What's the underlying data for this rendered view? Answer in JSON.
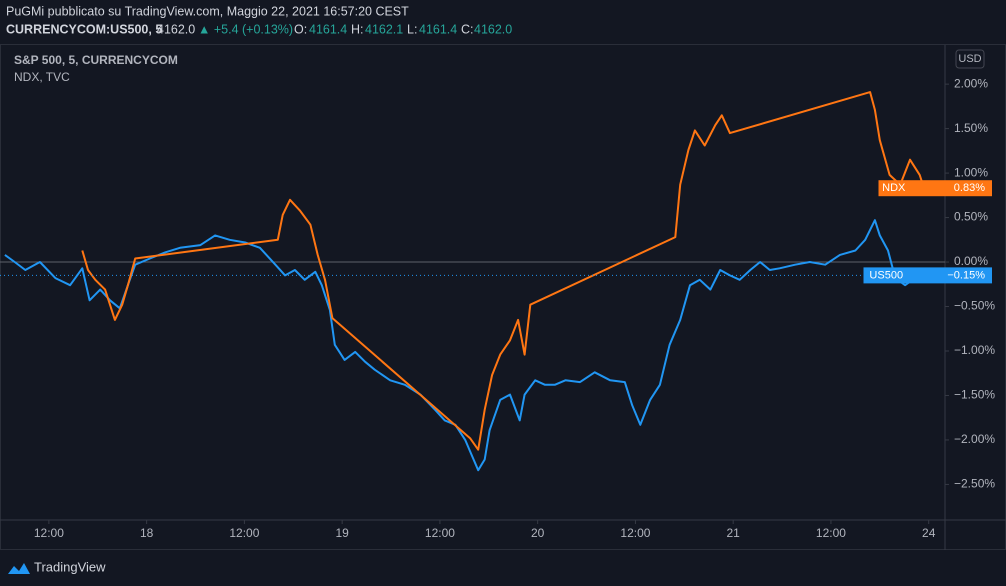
{
  "header": {
    "author_line": "PuGMi pubblicato su TradingView.com, Maggio 22, 2021 16:57:20 CEST",
    "symbol": "CURRENCYCOM:US500, 5",
    "price": "4162.0",
    "change": "▲ +5.4 (+0.13%)",
    "ohlc": [
      {
        "label": "O:",
        "value": "4161.4"
      },
      {
        "label": "H:",
        "value": "4162.1"
      },
      {
        "label": "L:",
        "value": "4161.4"
      },
      {
        "label": "C:",
        "value": "4162.0"
      }
    ]
  },
  "legend": [
    "S&P 500, 5, CURRENCYCOM",
    "NDX, TVC"
  ],
  "currency": "USD",
  "footer": "TradingView",
  "chart_data": {
    "type": "line",
    "xlim": [
      6,
      122
    ],
    "ylim": [
      -2.9,
      2.44
    ],
    "xticks": [
      {
        "value": 12,
        "label": "12:00"
      },
      {
        "value": 24,
        "label": "18"
      },
      {
        "value": 36,
        "label": "12:00"
      },
      {
        "value": 48,
        "label": "19"
      },
      {
        "value": 60,
        "label": "12:00"
      },
      {
        "value": 72,
        "label": "20"
      },
      {
        "value": 84,
        "label": "12:00"
      },
      {
        "value": 96,
        "label": "21"
      },
      {
        "value": 108,
        "label": "12:00"
      },
      {
        "value": 120,
        "label": "24"
      }
    ],
    "yticks": [
      {
        "value": 2,
        "label": "2.00%"
      },
      {
        "value": 1.5,
        "label": "1.50%"
      },
      {
        "value": 1,
        "label": "1.00%"
      },
      {
        "value": 0.5,
        "label": "0.50%"
      },
      {
        "value": 0,
        "label": "0.00%"
      },
      {
        "value": -0.5,
        "label": "−0.50%"
      },
      {
        "value": -1,
        "label": "−1.00%"
      },
      {
        "value": -1.5,
        "label": "−1.50%"
      },
      {
        "value": -2,
        "label": "−2.00%"
      },
      {
        "value": -2.5,
        "label": "−2.50%"
      }
    ],
    "grid": false,
    "series": [
      {
        "name": "US500",
        "color": "#2196f3",
        "last_value": -0.15,
        "last_label": "−0.15%",
        "x": [
          6.6,
          7.8,
          9.1,
          10.9,
          12.8,
          14.6,
          16.1,
          17.0,
          18.3,
          19.5,
          20.7,
          21.7,
          22.6,
          24.4,
          26.3,
          28.1,
          30.6,
          32.4,
          34.2,
          36.1,
          37.9,
          39.8,
          41.0,
          42.2,
          43.4,
          44.7,
          45.5,
          46.5,
          47.1,
          48.3,
          49.6,
          50.8,
          52.0,
          53.9,
          55.7,
          57.6,
          59.4,
          60.6,
          61.9,
          63.1,
          63.9,
          64.7,
          65.5,
          66.1,
          67.4,
          68.6,
          69.8,
          70.4,
          71.7,
          72.9,
          74.1,
          75.4,
          77.2,
          79.0,
          80.9,
          82.7,
          83.6,
          84.6,
          85.8,
          87.0,
          88.2,
          89.5,
          90.7,
          91.9,
          93.2,
          94.4,
          95.6,
          96.8,
          98.1,
          99.3,
          100.5,
          101.7,
          103.6,
          105.4,
          107.3,
          109.1,
          111.0,
          112.2,
          113.4,
          114.0,
          115.0,
          115.9,
          117.1,
          118.3,
          119.5,
          120.8
        ],
        "values": [
          0.08,
          0,
          -0.09,
          0,
          -0.18,
          -0.26,
          -0.07,
          -0.43,
          -0.31,
          -0.43,
          -0.52,
          -0.26,
          -0.03,
          0.04,
          0.11,
          0.16,
          0.19,
          0.3,
          0.25,
          0.22,
          0.16,
          -0.03,
          -0.15,
          -0.09,
          -0.2,
          -0.11,
          -0.26,
          -0.54,
          -0.93,
          -1.1,
          -1.01,
          -1.12,
          -1.21,
          -1.33,
          -1.38,
          -1.49,
          -1.66,
          -1.78,
          -1.83,
          -2.0,
          -2.17,
          -2.34,
          -2.22,
          -1.89,
          -1.55,
          -1.49,
          -1.78,
          -1.49,
          -1.33,
          -1.38,
          -1.38,
          -1.33,
          -1.35,
          -1.24,
          -1.33,
          -1.35,
          -1.61,
          -1.83,
          -1.55,
          -1.38,
          -0.93,
          -0.65,
          -0.26,
          -0.2,
          -0.31,
          -0.09,
          -0.15,
          -0.2,
          -0.09,
          0,
          -0.09,
          -0.07,
          -0.03,
          0,
          -0.03,
          0.08,
          0.13,
          0.25,
          0.47,
          0.3,
          0.13,
          -0.18,
          -0.26,
          -0.18,
          -0.22,
          -0.15
        ]
      },
      {
        "name": "NDX",
        "color": "#ff7613",
        "last_value": 0.83,
        "last_label": "0.83%",
        "x": [
          16.1,
          16.8,
          17.7,
          18.9,
          20.1,
          21.0,
          21.7,
          22.6,
          40.1,
          40.7,
          41.6,
          42.8,
          44.1,
          45.0,
          45.9,
          46.8,
          63.7,
          64.7,
          65.5,
          66.4,
          67.4,
          68.6,
          69.6,
          70.4,
          71.1,
          88.9,
          89.5,
          90.5,
          91.3,
          92.5,
          93.8,
          94.6,
          95.6,
          112.8,
          113.4,
          114.0,
          115.2,
          116.5,
          117.7,
          118.9,
          119.5,
          120.8
        ],
        "values": [
          0.13,
          -0.09,
          -0.2,
          -0.31,
          -0.65,
          -0.48,
          -0.26,
          0.04,
          0.25,
          0.53,
          0.7,
          0.58,
          0.42,
          0.08,
          -0.2,
          -0.63,
          -1.98,
          -2.11,
          -1.66,
          -1.27,
          -1.04,
          -0.88,
          -0.65,
          -1.04,
          -0.48,
          0.28,
          0.87,
          1.26,
          1.48,
          1.31,
          1.54,
          1.65,
          1.45,
          1.91,
          1.71,
          1.37,
          0.98,
          0.87,
          1.15,
          0.98,
          0.81,
          0.83
        ]
      }
    ]
  }
}
